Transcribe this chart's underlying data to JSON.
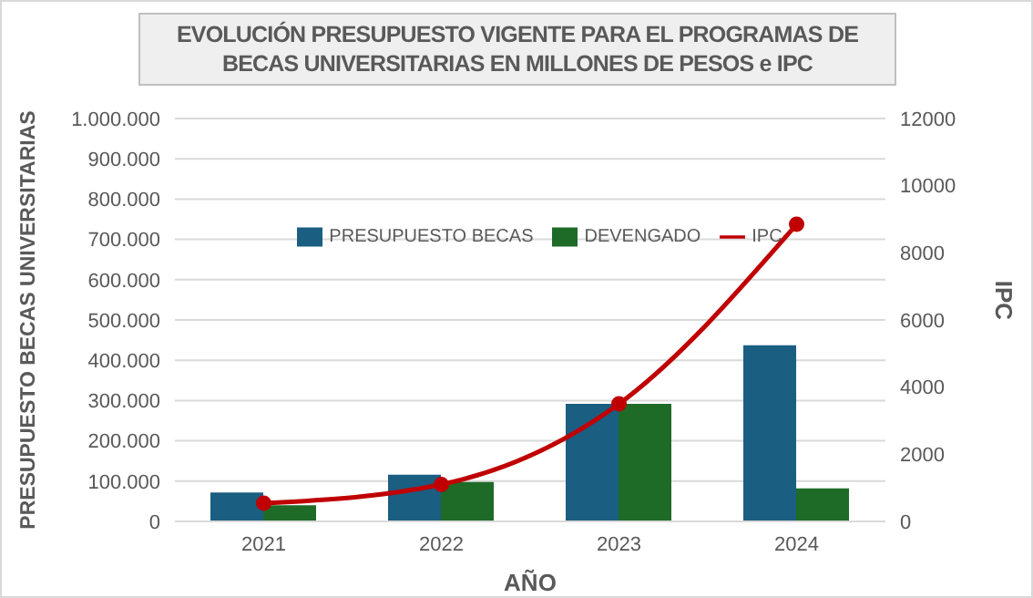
{
  "chart_data": {
    "type": "bar",
    "title": "EVOLUCIÓN PRESUPUESTO VIGENTE PARA EL PROGRAMAS DE BECAS UNIVERSITARIAS EN MILLONES DE PESOS e IPC",
    "xlabel": "AÑO",
    "ylabel": "PRESUPUESTO BECAS UNIVERSITARIAS",
    "y2label": "IPC",
    "categories": [
      "2021",
      "2022",
      "2023",
      "2024"
    ],
    "series": [
      {
        "name": "PRESUPUESTO BECAS",
        "color": "#1a5e82",
        "values": [
          72000,
          116000,
          292000,
          437000
        ]
      },
      {
        "name": "DEVENGADO",
        "color": "#1e6b28",
        "values": [
          40000,
          98000,
          292000,
          82000
        ]
      },
      {
        "name": "IPC",
        "type": "line",
        "axis": "y2",
        "color": "#c00000",
        "marker": "circle",
        "values": [
          540,
          1100,
          3500,
          8850
        ]
      }
    ],
    "ylim": [
      0,
      1000000
    ],
    "yticks": [
      {
        "value": 0,
        "label": "0"
      },
      {
        "value": 100000,
        "label": "100.000"
      },
      {
        "value": 200000,
        "label": "200.000"
      },
      {
        "value": 300000,
        "label": "300.000"
      },
      {
        "value": 400000,
        "label": "400.000"
      },
      {
        "value": 500000,
        "label": "500.000"
      },
      {
        "value": 600000,
        "label": "600.000"
      },
      {
        "value": 700000,
        "label": "700.000"
      },
      {
        "value": 800000,
        "label": "800.000"
      },
      {
        "value": 900000,
        "label": "900.000"
      },
      {
        "value": 1000000,
        "label": "1.000.000"
      }
    ],
    "y2lim": [
      0,
      12000
    ],
    "y2ticks": [
      0,
      2000,
      4000,
      6000,
      8000,
      10000,
      12000
    ],
    "grid": "y",
    "legend": "top"
  }
}
